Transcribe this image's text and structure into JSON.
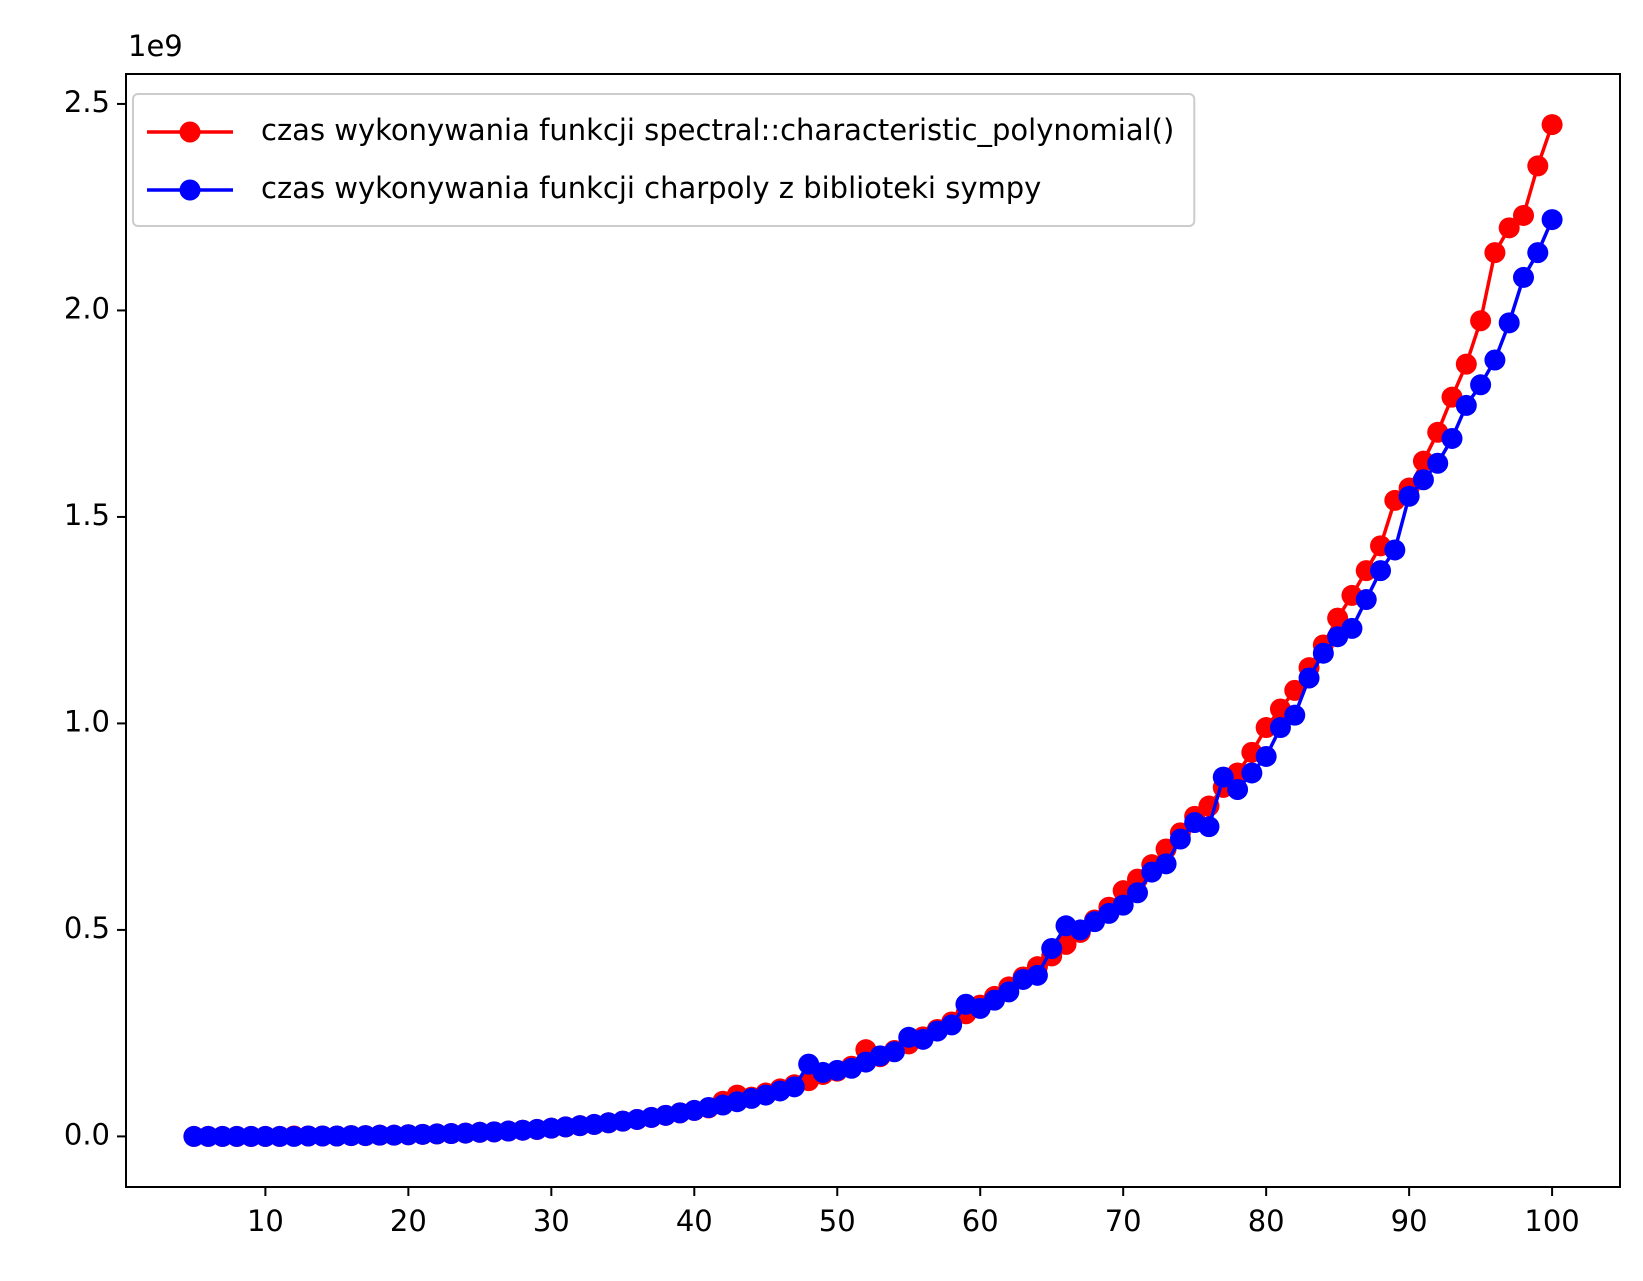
{
  "chart_data": {
    "type": "line",
    "offset_text": "1e9",
    "x": [
      5,
      6,
      7,
      8,
      9,
      10,
      11,
      12,
      13,
      14,
      15,
      16,
      17,
      18,
      19,
      20,
      21,
      22,
      23,
      24,
      25,
      26,
      27,
      28,
      29,
      30,
      31,
      32,
      33,
      34,
      35,
      36,
      37,
      38,
      39,
      40,
      41,
      42,
      43,
      44,
      45,
      46,
      47,
      48,
      49,
      50,
      51,
      52,
      53,
      54,
      55,
      56,
      57,
      58,
      59,
      60,
      61,
      62,
      63,
      64,
      65,
      66,
      67,
      68,
      69,
      70,
      71,
      72,
      73,
      74,
      75,
      76,
      77,
      78,
      79,
      80,
      81,
      82,
      83,
      84,
      85,
      86,
      87,
      88,
      89,
      90,
      91,
      92,
      93,
      94,
      95,
      96,
      97,
      98,
      99,
      100
    ],
    "series": [
      {
        "name": "czas wykonywania funkcji spectral::characteristic_polynomial()",
        "color": "#ff0000",
        "values": [
          0,
          0,
          0,
          0,
          0,
          0,
          0,
          0.001,
          0.001,
          0.001,
          0.001,
          0.002,
          0.002,
          0.003,
          0.003,
          0.004,
          0.005,
          0.006,
          0.007,
          0.008,
          0.01,
          0.011,
          0.013,
          0.015,
          0.017,
          0.02,
          0.023,
          0.026,
          0.029,
          0.033,
          0.037,
          0.041,
          0.046,
          0.051,
          0.057,
          0.063,
          0.069,
          0.085,
          0.1,
          0.095,
          0.105,
          0.115,
          0.125,
          0.135,
          0.15,
          0.158,
          0.17,
          0.21,
          0.193,
          0.208,
          0.224,
          0.241,
          0.259,
          0.277,
          0.297,
          0.318,
          0.339,
          0.362,
          0.386,
          0.411,
          0.437,
          0.465,
          0.494,
          0.524,
          0.555,
          0.595,
          0.623,
          0.658,
          0.696,
          0.735,
          0.775,
          0.8,
          0.845,
          0.88,
          0.93,
          0.99,
          1.035,
          1.08,
          1.135,
          1.19,
          1.255,
          1.31,
          1.37,
          1.43,
          1.54,
          1.57,
          1.635,
          1.705,
          1.79,
          1.87,
          1.975,
          2.14,
          2.2,
          2.23,
          2.35,
          2.45
        ]
      },
      {
        "name": "czas wykonywania funkcji charpoly z biblioteki sympy",
        "color": "#0000ff",
        "values": [
          0,
          0,
          0,
          0,
          0,
          0,
          0,
          0,
          0.001,
          0.001,
          0.001,
          0.002,
          0.002,
          0.003,
          0.003,
          0.004,
          0.005,
          0.006,
          0.007,
          0.008,
          0.01,
          0.011,
          0.013,
          0.015,
          0.017,
          0.02,
          0.023,
          0.026,
          0.029,
          0.033,
          0.037,
          0.041,
          0.046,
          0.051,
          0.057,
          0.063,
          0.07,
          0.076,
          0.084,
          0.092,
          0.1,
          0.11,
          0.12,
          0.175,
          0.155,
          0.16,
          0.165,
          0.18,
          0.195,
          0.205,
          0.24,
          0.235,
          0.255,
          0.27,
          0.32,
          0.31,
          0.33,
          0.35,
          0.38,
          0.39,
          0.455,
          0.51,
          0.5,
          0.52,
          0.54,
          0.56,
          0.59,
          0.64,
          0.66,
          0.72,
          0.76,
          0.75,
          0.87,
          0.84,
          0.88,
          0.92,
          0.99,
          1.02,
          1.11,
          1.17,
          1.21,
          1.23,
          1.3,
          1.37,
          1.42,
          1.55,
          1.59,
          1.63,
          1.69,
          1.77,
          1.82,
          1.88,
          1.97,
          2.08,
          2.14,
          2.22
        ]
      }
    ],
    "xlim": [
      0.25,
      104.75
    ],
    "xticks": [
      10,
      20,
      30,
      40,
      50,
      60,
      70,
      80,
      90,
      100
    ],
    "ylim": [
      -0.1225,
      2.5725
    ],
    "yticks": [
      {
        "value": 0,
        "label": "0.0"
      },
      {
        "value": 0.5,
        "label": "0.5"
      },
      {
        "value": 1,
        "label": "1.0"
      },
      {
        "value": 1.5,
        "label": "1.5"
      },
      {
        "value": 2,
        "label": "2.0"
      },
      {
        "value": 2.5,
        "label": "2.5"
      }
    ],
    "legend": "upper left",
    "grid": false
  }
}
